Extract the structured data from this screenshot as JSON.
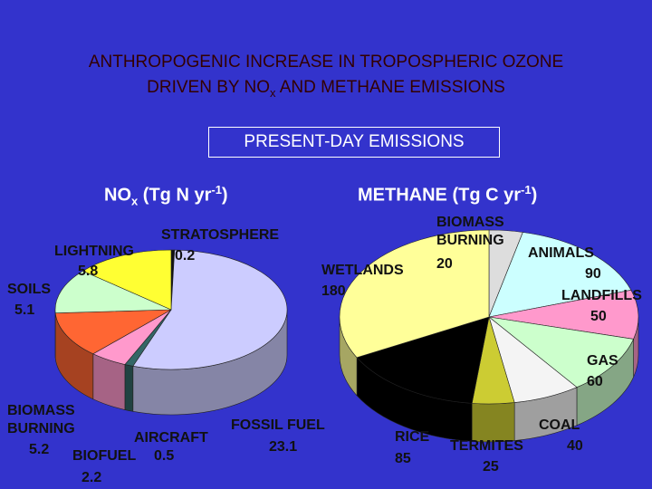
{
  "slide": {
    "title_line1": "ANTHROPOGENIC INCREASE IN TROPOSPHERIC OZONE",
    "title_line2": [
      "DRIVEN BY NO",
      "x",
      " AND METHANE EMISSIONS"
    ],
    "subtitle": "PRESENT-DAY EMISSIONS"
  },
  "chart_data": [
    {
      "type": "pie",
      "title": [
        "NO",
        "x",
        " (Tg N yr",
        "-1",
        ")"
      ],
      "categories": [
        "STRATOSPHERE",
        "FOSSIL FUEL",
        "AIRCRAFT",
        "BIOFUEL",
        "BIOMASS BURNING",
        "SOILS",
        "LIGHTNING"
      ],
      "values": [
        0.2,
        23.1,
        0.5,
        2.2,
        5.2,
        5.1,
        5.8
      ],
      "colors": [
        "#111111",
        "#ccccff",
        "#336666",
        "#ff99cc",
        "#ff6633",
        "#ccffcc",
        "#ffff33"
      ]
    },
    {
      "type": "pie",
      "title": [
        "METHANE (Tg C yr",
        "-1",
        ")"
      ],
      "categories": [
        "BIOMASS BURNING",
        "ANIMALS",
        "LANDFILLS",
        "GAS",
        "COAL",
        "TERMITES",
        "RICE",
        "WETLANDS"
      ],
      "values": [
        20,
        90,
        50,
        60,
        40,
        25,
        85,
        180
      ],
      "colors": [
        "#dddddd",
        "#ccffff",
        "#ff99cc",
        "#ccffcc",
        "#f4f4f4",
        "#cccc33",
        "#000000",
        "#ffff99"
      ]
    }
  ]
}
